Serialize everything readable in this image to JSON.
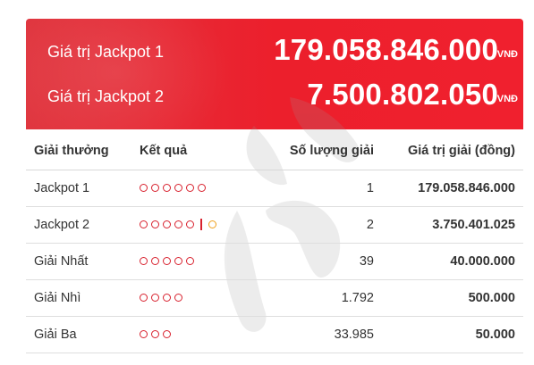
{
  "jackpots": [
    {
      "label": "Giá trị Jackpot 1",
      "value": "179.058.846.000",
      "unit": "VNĐ"
    },
    {
      "label": "Giá trị Jackpot 2",
      "value": "7.500.802.050",
      "unit": "VNĐ"
    }
  ],
  "table": {
    "headers": [
      "Giải thưởng",
      "Kết quả",
      "Số lượng giải",
      "Giá trị giải (đồng)"
    ],
    "rows": [
      {
        "name": "Jackpot 1",
        "main_balls": 6,
        "special_ball": false,
        "count": "1",
        "value": "179.058.846.000"
      },
      {
        "name": "Jackpot 2",
        "main_balls": 5,
        "special_ball": true,
        "count": "2",
        "value": "3.750.401.025"
      },
      {
        "name": "Giải Nhất",
        "main_balls": 5,
        "special_ball": false,
        "count": "39",
        "value": "40.000.000"
      },
      {
        "name": "Giải Nhì",
        "main_balls": 4,
        "special_ball": false,
        "count": "1.792",
        "value": "500.000"
      },
      {
        "name": "Giải Ba",
        "main_balls": 3,
        "special_ball": false,
        "count": "33.985",
        "value": "50.000"
      }
    ]
  },
  "colors": {
    "banner_red": "#ec1f2c",
    "prize_red": "#d8212e",
    "special_gold": "#f0a01c"
  }
}
